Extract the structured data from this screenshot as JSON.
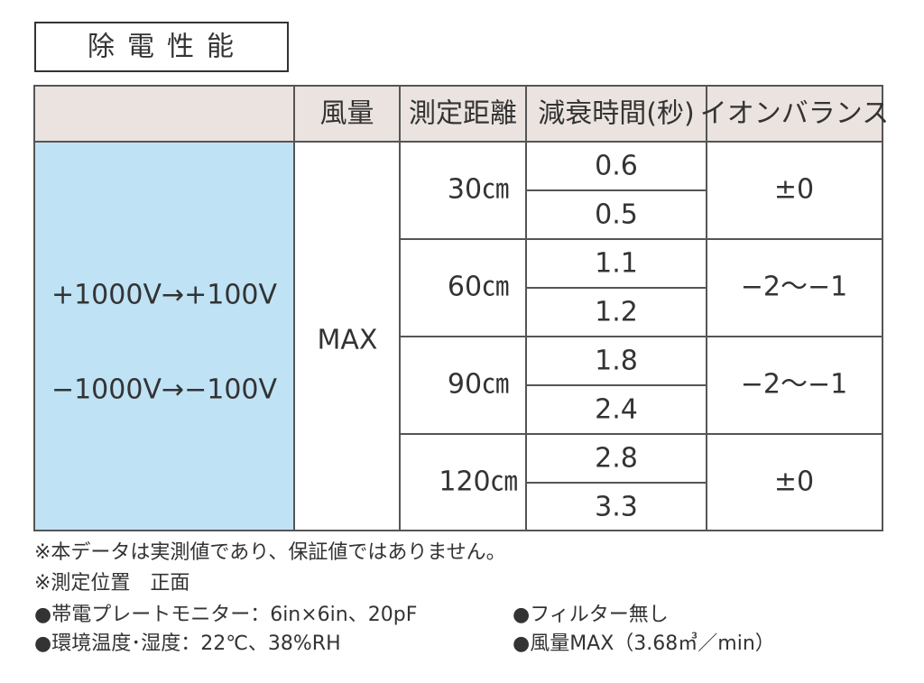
{
  "title": "除電性能",
  "table": {
    "header": [
      "風量",
      "測定距離",
      "減衰時間(秒)",
      "イオンバランス"
    ],
    "voltage": [
      "+1000V→+100V",
      "−1000V→−100V"
    ],
    "airflow": "MAX",
    "groups": [
      {
        "distance": "30㎝",
        "decay": [
          0.6,
          0.5
        ],
        "balance": "±0"
      },
      {
        "distance": "60㎝",
        "decay": [
          1.1,
          1.2
        ],
        "balance": "−2〜−1"
      },
      {
        "distance": "90㎝",
        "decay": [
          1.8,
          2.4
        ],
        "balance": "−2〜−1"
      },
      {
        "distance": "120㎝",
        "decay": [
          2.8,
          3.3
        ],
        "balance": "±0"
      }
    ]
  },
  "notes": [
    "※本データは実測値であり、保証値ではありません。",
    "※測定位置　正面"
  ],
  "conditions": [
    "●帯電プレートモニター：6in×6in、20pF",
    "●フィルター無し",
    "●環境温度･湿度：22℃、38%RH",
    "●風量MAX（3.68㎥／min）"
  ]
}
